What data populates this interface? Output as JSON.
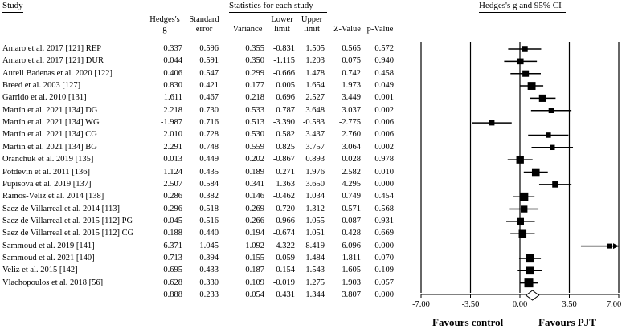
{
  "headers": {
    "study": "Study",
    "stats": "Statistics for each study",
    "plot": "Hedges's g and 95% CI"
  },
  "columns": [
    {
      "key": "g",
      "label1": "Hedges's",
      "label2": "g"
    },
    {
      "key": "se",
      "label1": "Standard",
      "label2": "error"
    },
    {
      "key": "var",
      "label1": "",
      "label2": "Variance"
    },
    {
      "key": "lower",
      "label1": "Lower",
      "label2": "limit"
    },
    {
      "key": "upper",
      "label1": "Upper",
      "label2": "limit"
    },
    {
      "key": "z",
      "label1": "",
      "label2": "Z-Value"
    },
    {
      "key": "p",
      "label1": "",
      "label2": "p-Value"
    }
  ],
  "chart_data": {
    "type": "forest",
    "xlim": [
      -7.0,
      7.0
    ],
    "ticks": [
      "-7.00",
      "-3.50",
      "0.00",
      "3.50",
      "7.00"
    ],
    "tick_values": [
      -7,
      -3.5,
      0,
      3.5,
      7
    ],
    "favours_left": "Favours control",
    "favours_right": "Favours PJT",
    "studies": [
      {
        "name": "Amaro et al. 2017 [121] REP",
        "g": "0.337",
        "se": "0.596",
        "var": "0.355",
        "lower": "-0.831",
        "upper": "1.505",
        "z": "0.565",
        "p": "0.572"
      },
      {
        "name": "Amaro et al. 2017 [121] DUR",
        "g": "0.044",
        "se": "0.591",
        "var": "0.350",
        "lower": "-1.115",
        "upper": "1.203",
        "z": "0.075",
        "p": "0.940"
      },
      {
        "name": "Aurell Badenas et al. 2020 [122]",
        "g": "0.406",
        "se": "0.547",
        "var": "0.299",
        "lower": "-0.666",
        "upper": "1.478",
        "z": "0.742",
        "p": "0.458"
      },
      {
        "name": "Breed et al. 2003 [127]",
        "g": "0.830",
        "se": "0.421",
        "var": "0.177",
        "lower": "0.005",
        "upper": "1.654",
        "z": "1.973",
        "p": "0.049"
      },
      {
        "name": "Garrido et al. 2010 [131]",
        "g": "1.611",
        "se": "0.467",
        "var": "0.218",
        "lower": "0.696",
        "upper": "2.527",
        "z": "3.449",
        "p": "0.001"
      },
      {
        "name": "Martín et al. 2021 [134] DG",
        "g": "2.218",
        "se": "0.730",
        "var": "0.533",
        "lower": "0.787",
        "upper": "3.648",
        "z": "3.037",
        "p": "0.002"
      },
      {
        "name": "Martín et al. 2021 [134] WG",
        "g": "-1.987",
        "se": "0.716",
        "var": "0.513",
        "lower": "-3.390",
        "upper": "-0.583",
        "z": "-2.775",
        "p": "0.006"
      },
      {
        "name": "Martín et al. 2021 [134] CG",
        "g": "2.010",
        "se": "0.728",
        "var": "0.530",
        "lower": "0.582",
        "upper": "3.437",
        "z": "2.760",
        "p": "0.006"
      },
      {
        "name": "Martín et al. 2021 [134] BG",
        "g": "2.291",
        "se": "0.748",
        "var": "0.559",
        "lower": "0.825",
        "upper": "3.757",
        "z": "3.064",
        "p": "0.002"
      },
      {
        "name": "Oranchuk et al. 2019 [135]",
        "g": "0.013",
        "se": "0.449",
        "var": "0.202",
        "lower": "-0.867",
        "upper": "0.893",
        "z": "0.028",
        "p": "0.978"
      },
      {
        "name": "Potdevin et al. 2011 [136]",
        "g": "1.124",
        "se": "0.435",
        "var": "0.189",
        "lower": "0.271",
        "upper": "1.976",
        "z": "2.582",
        "p": "0.010"
      },
      {
        "name": "Pupisova et al. 2019 [137]",
        "g": "2.507",
        "se": "0.584",
        "var": "0.341",
        "lower": "1.363",
        "upper": "3.650",
        "z": "4.295",
        "p": "0.000"
      },
      {
        "name": "Ramos-Veliz et al. 2014 [138]",
        "g": "0.286",
        "se": "0.382",
        "var": "0.146",
        "lower": "-0.462",
        "upper": "1.034",
        "z": "0.749",
        "p": "0.454"
      },
      {
        "name": "Saez de Villarreal et al. 2014 [113]",
        "g": "0.296",
        "se": "0.518",
        "var": "0.269",
        "lower": "-0.720",
        "upper": "1.312",
        "z": "0.571",
        "p": "0.568"
      },
      {
        "name": "Saez de Villarreal et al. 2015 [112] PG",
        "g": "0.045",
        "se": "0.516",
        "var": "0.266",
        "lower": "-0.966",
        "upper": "1.055",
        "z": "0.087",
        "p": "0.931"
      },
      {
        "name": "Saez de Villarreal et al. 2015 [112] CG",
        "g": "0.188",
        "se": "0.440",
        "var": "0.194",
        "lower": "-0.674",
        "upper": "1.051",
        "z": "0.428",
        "p": "0.669"
      },
      {
        "name": "Sammoud et al. 2019 [141]",
        "g": "6.371",
        "se": "1.045",
        "var": "1.092",
        "lower": "4.322",
        "upper": "8.419",
        "z": "6.096",
        "p": "0.000"
      },
      {
        "name": "Sammoud et al. 2021 [140]",
        "g": "0.713",
        "se": "0.394",
        "var": "0.155",
        "lower": "-0.059",
        "upper": "1.484",
        "z": "1.811",
        "p": "0.070"
      },
      {
        "name": "Veliz et al. 2015 [142]",
        "g": "0.695",
        "se": "0.433",
        "var": "0.187",
        "lower": "-0.154",
        "upper": "1.543",
        "z": "1.605",
        "p": "0.109"
      },
      {
        "name": "Vlachopoulos et al. 2018 [56]",
        "g": "0.628",
        "se": "0.330",
        "var": "0.109",
        "lower": "-0.019",
        "upper": "1.275",
        "z": "1.903",
        "p": "0.057"
      }
    ],
    "overall": {
      "g": "0.888",
      "se": "0.233",
      "var": "0.054",
      "lower": "0.431",
      "upper": "1.344",
      "z": "3.807",
      "p": "0.000"
    }
  }
}
